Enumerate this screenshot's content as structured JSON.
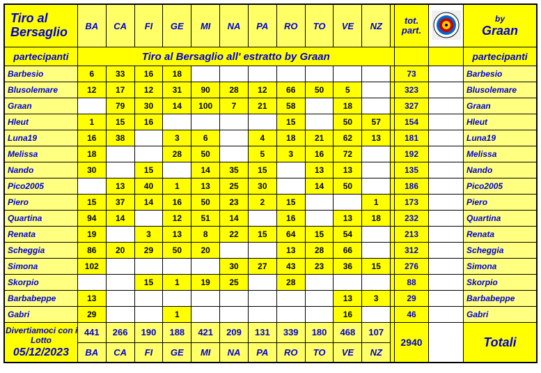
{
  "title_line1": "Tiro  al",
  "title_line2": "Bersaglio",
  "cols": [
    "BA",
    "CA",
    "FI",
    "GE",
    "MI",
    "NA",
    "PA",
    "RO",
    "TO",
    "VE",
    "NZ"
  ],
  "tot_head1": "tot.",
  "tot_head2": "part.",
  "by": "by",
  "author": "Graan",
  "subtitle": "Tiro al Bersaglio all' estratto  by Graan",
  "partecipanti": "partecipanti",
  "rows": [
    {
      "name": "Barbesio",
      "vals": [
        "6",
        "33",
        "16",
        "18",
        "",
        "",
        "",
        "",
        "",
        "",
        ""
      ],
      "tot": "73"
    },
    {
      "name": "Blusolemare",
      "vals": [
        "12",
        "17",
        "12",
        "31",
        "90",
        "28",
        "12",
        "66",
        "50",
        "5",
        ""
      ],
      "tot": "323"
    },
    {
      "name": "Graan",
      "vals": [
        "",
        "79",
        "30",
        "14",
        "100",
        "7",
        "21",
        "58",
        "",
        "18",
        ""
      ],
      "tot": "327"
    },
    {
      "name": "Hleut",
      "vals": [
        "1",
        "15",
        "16",
        "",
        "",
        "",
        "",
        "15",
        "",
        "50",
        "57"
      ],
      "tot": "154"
    },
    {
      "name": "Luna19",
      "vals": [
        "16",
        "38",
        "",
        "3",
        "6",
        "",
        "4",
        "18",
        "21",
        "62",
        "13"
      ],
      "tot": "181"
    },
    {
      "name": "Melissa",
      "vals": [
        "18",
        "",
        "",
        "28",
        "50",
        "",
        "5",
        "3",
        "16",
        "72",
        ""
      ],
      "tot": "192"
    },
    {
      "name": "Nando",
      "vals": [
        "30",
        "",
        "15",
        "",
        "14",
        "35",
        "15",
        "",
        "13",
        "13",
        ""
      ],
      "tot": "135"
    },
    {
      "name": "Pico2005",
      "vals": [
        "",
        "13",
        "40",
        "1",
        "13",
        "25",
        "30",
        "",
        "14",
        "50",
        ""
      ],
      "tot": "186"
    },
    {
      "name": "Piero",
      "vals": [
        "15",
        "37",
        "14",
        "16",
        "50",
        "23",
        "2",
        "15",
        "",
        "",
        "1"
      ],
      "tot": "173"
    },
    {
      "name": "Quartina",
      "vals": [
        "94",
        "14",
        "",
        "12",
        "51",
        "14",
        "",
        "16",
        "",
        "13",
        "18"
      ],
      "tot": "232"
    },
    {
      "name": "Renata",
      "vals": [
        "19",
        "",
        "3",
        "13",
        "8",
        "22",
        "15",
        "64",
        "15",
        "54",
        ""
      ],
      "tot": "213"
    },
    {
      "name": "Scheggia",
      "vals": [
        "86",
        "20",
        "29",
        "50",
        "20",
        "",
        "",
        "13",
        "28",
        "66",
        ""
      ],
      "tot": "312"
    },
    {
      "name": "Simona",
      "vals": [
        "102",
        "",
        "",
        "",
        "",
        "30",
        "27",
        "43",
        "23",
        "36",
        "15"
      ],
      "tot": "276"
    },
    {
      "name": "Skorpio",
      "vals": [
        "",
        "",
        "15",
        "1",
        "19",
        "25",
        "",
        "28",
        "",
        "",
        ""
      ],
      "tot": "88"
    },
    {
      "name": "Barbabeppe",
      "vals": [
        "13",
        "",
        "",
        "",
        "",
        "",
        "",
        "",
        "",
        "13",
        "3"
      ],
      "tot": "29"
    },
    {
      "name": "Gabri",
      "vals": [
        "29",
        "",
        "",
        "1",
        "",
        "",
        "",
        "",
        "",
        "16",
        ""
      ],
      "tot": "46"
    }
  ],
  "footer_line1": "Divertiamoci con il",
  "footer_line2": "Lotto",
  "date": "05/12/2023",
  "col_totals": [
    "441",
    "266",
    "190",
    "188",
    "421",
    "209",
    "131",
    "339",
    "180",
    "468",
    "107"
  ],
  "grand_total": "2940",
  "totali": "Totali"
}
